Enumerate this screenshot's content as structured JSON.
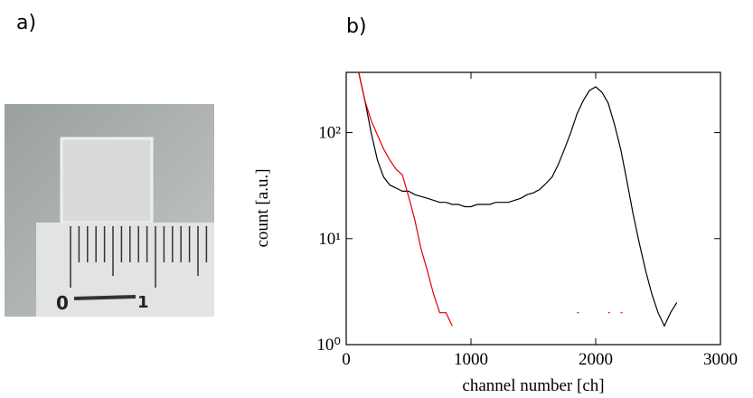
{
  "panel_labels": [
    "a)",
    "b)"
  ],
  "chart_data": {
    "type": "line",
    "xlabel": "channel number [ch]",
    "ylabel": "count [a.u.]",
    "x": [
      100,
      150,
      200,
      250,
      300,
      350,
      400,
      450,
      500,
      550,
      600,
      650,
      700,
      750,
      800,
      850,
      900,
      950,
      1000,
      1050,
      1100,
      1150,
      1200,
      1250,
      1300,
      1350,
      1400,
      1450,
      1500,
      1550,
      1600,
      1650,
      1700,
      1750,
      1800,
      1850,
      1900,
      1950,
      2000,
      2050,
      2100,
      2150,
      2200,
      2250,
      2300,
      2350,
      2400,
      2450,
      2500,
      2550,
      2600,
      2650,
      2700
    ],
    "series": [
      {
        "color": "#000000",
        "values": [
          370,
          200,
          100,
          55,
          38,
          32,
          30,
          28,
          28,
          26,
          25,
          24,
          23,
          22,
          22,
          21,
          21,
          20,
          20,
          21,
          21,
          21,
          22,
          22,
          22,
          23,
          24,
          26,
          27,
          29,
          33,
          38,
          50,
          70,
          100,
          150,
          200,
          250,
          270,
          240,
          190,
          120,
          70,
          35,
          17,
          9,
          5,
          3,
          2,
          1.5,
          2,
          2.5,
          null
        ]
      },
      {
        "color": "#e00000",
        "values": [
          370,
          200,
          130,
          95,
          70,
          55,
          45,
          40,
          25,
          15,
          8,
          5,
          3,
          2,
          2,
          1.5,
          null,
          null,
          null,
          null,
          null,
          null,
          null,
          null,
          null,
          null,
          null,
          null,
          null,
          null,
          null,
          null,
          null,
          null,
          null,
          2,
          null,
          null,
          null,
          null,
          2,
          null,
          2,
          null,
          null,
          null,
          null,
          null,
          null,
          null,
          null,
          null,
          null
        ]
      }
    ],
    "xlim": [
      0,
      3000
    ],
    "xticks": [
      0,
      1000,
      2000,
      3000
    ],
    "ylim": [
      1,
      370
    ],
    "ylog": true,
    "yticks": [
      {
        "value": 1,
        "label": "10⁰"
      },
      {
        "value": 10,
        "label": "10¹"
      },
      {
        "value": 100,
        "label": "10²"
      }
    ]
  }
}
